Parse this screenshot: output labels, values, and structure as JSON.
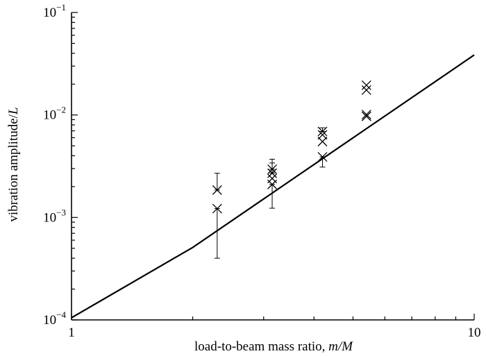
{
  "chart_data": {
    "type": "scatter",
    "title": "",
    "xlabel": "load-to-beam mass ratio, m/M",
    "xlabel_plain": "load-to-beam mass ratio, ",
    "xlabel_italic": "m/M",
    "ylabel": "vibration amplitude/L",
    "ylabel_plain": "vibration amplitude/",
    "ylabel_italic": "L",
    "x_scale": "log",
    "y_scale": "log",
    "xlim": [
      1,
      10
    ],
    "ylim": [
      0.0001,
      0.1
    ],
    "x_tick_labels": [
      {
        "value": 1,
        "text": "1"
      },
      {
        "value": 10,
        "text": "10"
      }
    ],
    "y_tick_labels": [
      {
        "value": 0.0001,
        "base": "10",
        "exp": "−4"
      },
      {
        "value": 0.001,
        "base": "10",
        "exp": "−3"
      },
      {
        "value": 0.01,
        "base": "10",
        "exp": "−2"
      },
      {
        "value": 0.1,
        "base": "10",
        "exp": "−1"
      }
    ],
    "grid": false,
    "legend": "none",
    "series": [
      {
        "kind": "line",
        "x": [
          1,
          2,
          10
        ],
        "y": [
          0.000105,
          0.00051,
          0.0385
        ]
      },
      {
        "kind": "scatter",
        "marker": "x",
        "points": [
          {
            "x": 2.3,
            "y": 0.00185,
            "ylo": 0.00185,
            "yhi": 0.0027
          },
          {
            "x": 2.3,
            "y": 0.00122,
            "ylo": 0.0004,
            "yhi": 0.00122
          },
          {
            "x": 3.15,
            "y": 0.00295,
            "ylo": 0.00295,
            "yhi": 0.0037
          },
          {
            "x": 3.15,
            "y": 0.0027,
            "ylo": 0.0027,
            "yhi": 0.0034
          },
          {
            "x": 3.15,
            "y": 0.0024
          },
          {
            "x": 3.15,
            "y": 0.0021,
            "ylo": 0.00123,
            "yhi": 0.0021
          },
          {
            "x": 4.2,
            "y": 0.0069,
            "ylo": 0.0069,
            "yhi": 0.0075
          },
          {
            "x": 4.2,
            "y": 0.0064
          },
          {
            "x": 4.2,
            "y": 0.0055
          },
          {
            "x": 4.2,
            "y": 0.0039,
            "ylo": 0.0031,
            "yhi": 0.0039
          },
          {
            "x": 5.4,
            "y": 0.0195
          },
          {
            "x": 5.4,
            "y": 0.0175
          },
          {
            "x": 5.4,
            "y": 0.0101
          },
          {
            "x": 5.4,
            "y": 0.0097
          }
        ]
      }
    ]
  }
}
